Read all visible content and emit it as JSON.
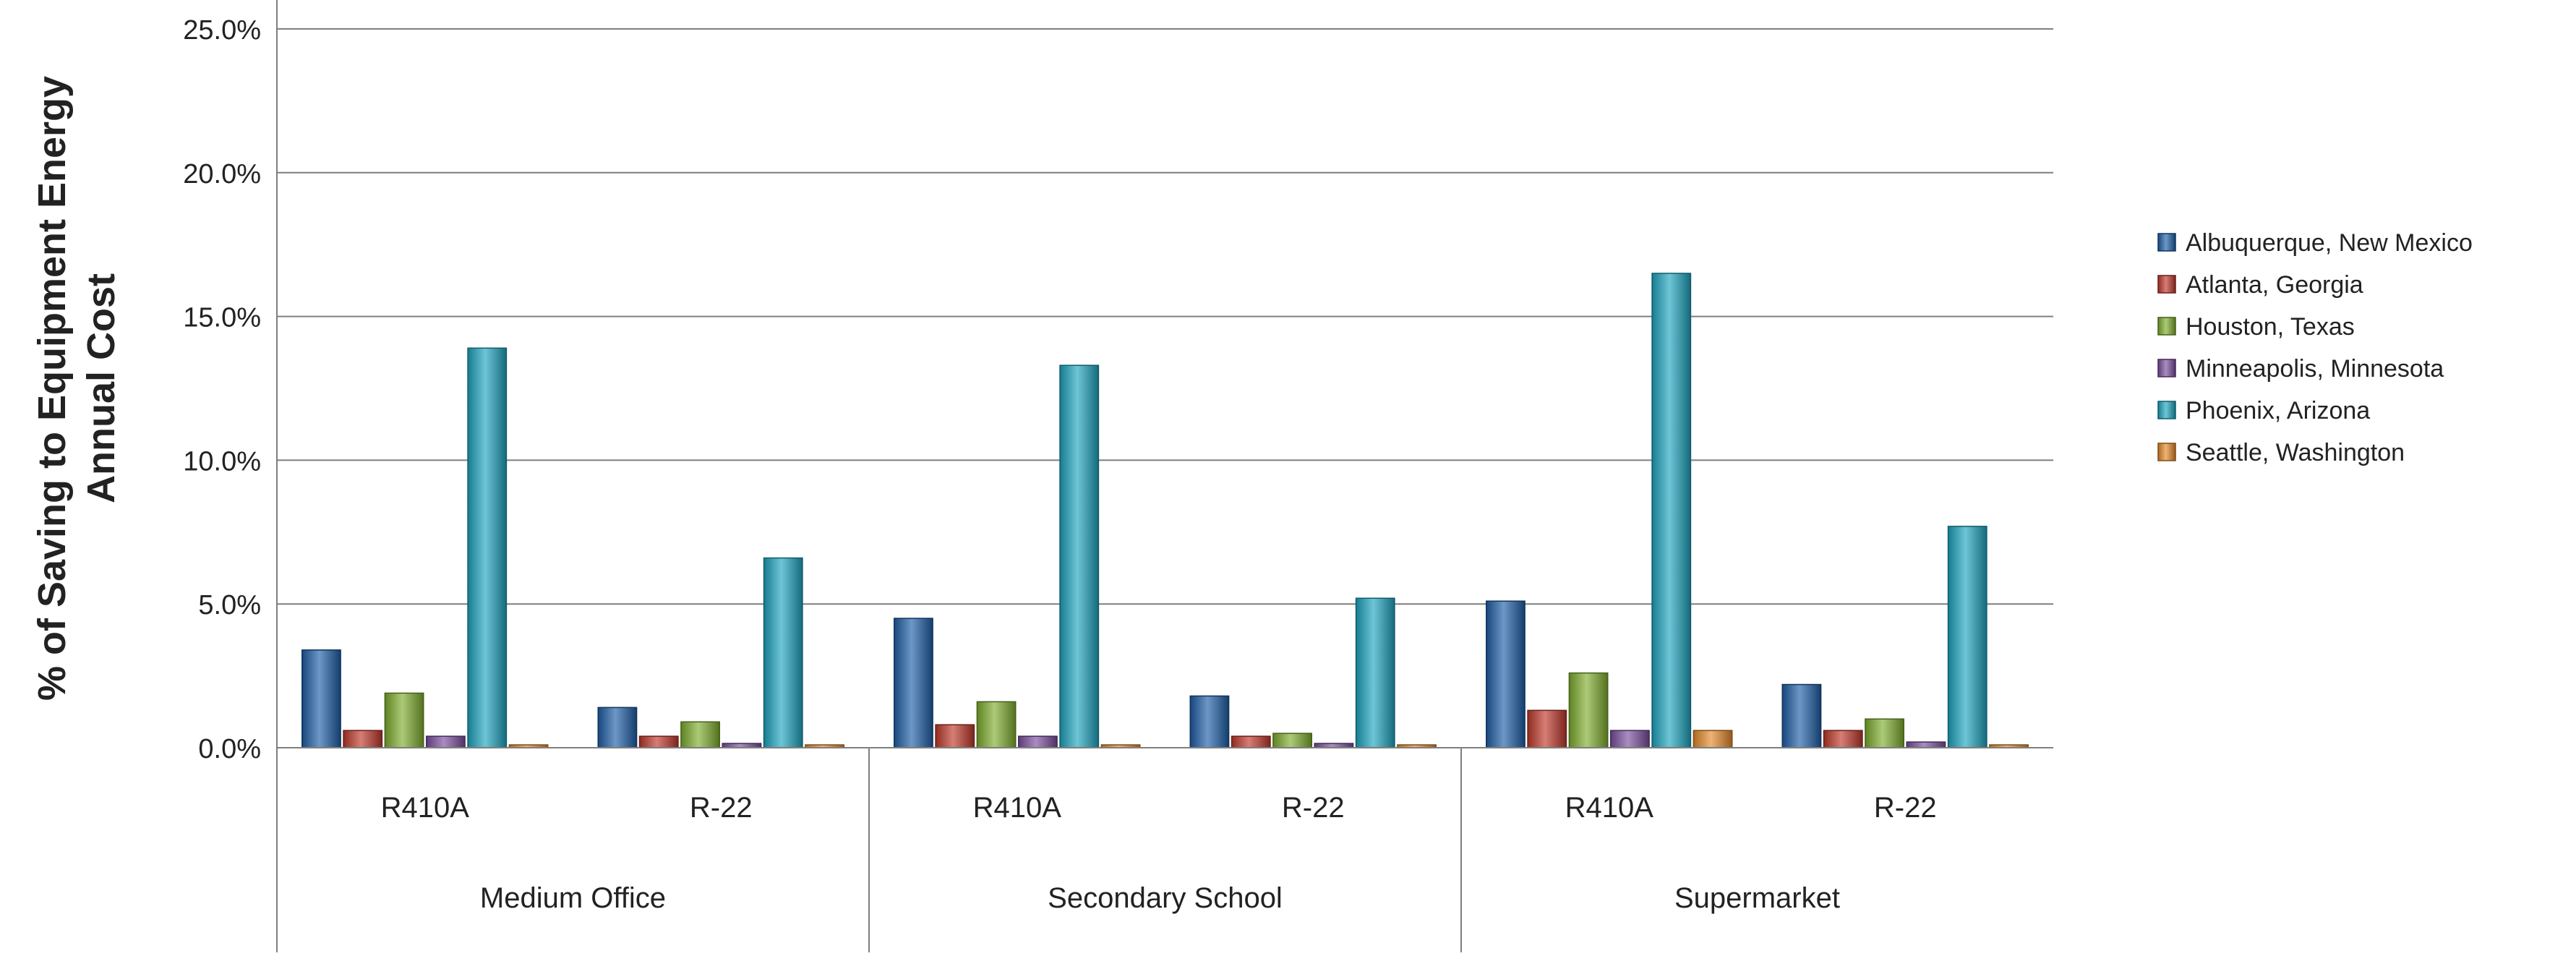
{
  "chart_data": {
    "type": "bar",
    "title": "",
    "xlabel": "",
    "ylabel": "% of Saving to Equipment Energy Annual Cost",
    "ylabel_lines": [
      "% of Saving to Equipment Energy",
      "Annual Cost"
    ],
    "ylim": [
      0,
      25
    ],
    "yticks": [
      0,
      5,
      10,
      15,
      20,
      25
    ],
    "ytick_labels": [
      "0.0%",
      "5.0%",
      "10.0%",
      "15.0%",
      "20.0%",
      "25.0%"
    ],
    "grid": true,
    "legend_position": "right",
    "groups": [
      {
        "label": "Medium Office",
        "categories": [
          "R410A",
          "R-22"
        ]
      },
      {
        "label": "Secondary School",
        "categories": [
          "R410A",
          "R-22"
        ]
      },
      {
        "label": "Supermarket",
        "categories": [
          "R410A",
          "R-22"
        ]
      }
    ],
    "categories": [
      "Medium Office R410A",
      "Medium Office R-22",
      "Secondary School R410A",
      "Secondary School R-22",
      "Supermarket R410A",
      "Supermarket R-22"
    ],
    "series": [
      {
        "name": "Albuquerque, New Mexico",
        "color": "#1f5fa8",
        "values": [
          3.4,
          1.4,
          4.5,
          1.8,
          5.1,
          2.2
        ]
      },
      {
        "name": "Atlanta, Georgia",
        "color": "#c0392b",
        "values": [
          0.6,
          0.4,
          0.8,
          0.4,
          1.3,
          0.6
        ]
      },
      {
        "name": "Houston, Texas",
        "color": "#7fae2e",
        "values": [
          1.9,
          0.9,
          1.6,
          0.5,
          2.6,
          1.0
        ]
      },
      {
        "name": "Minneapolis, Minnesota",
        "color": "#7a4f9e",
        "values": [
          0.4,
          0.15,
          0.4,
          0.15,
          0.6,
          0.2
        ]
      },
      {
        "name": "Phoenix, Arizona",
        "color": "#1fa5c0",
        "values": [
          13.9,
          6.6,
          13.3,
          5.2,
          16.5,
          7.7
        ]
      },
      {
        "name": "Seattle, Washington",
        "color": "#e58a2a",
        "values": [
          0.1,
          0.05,
          0.1,
          0.05,
          0.6,
          0.05
        ]
      }
    ]
  }
}
